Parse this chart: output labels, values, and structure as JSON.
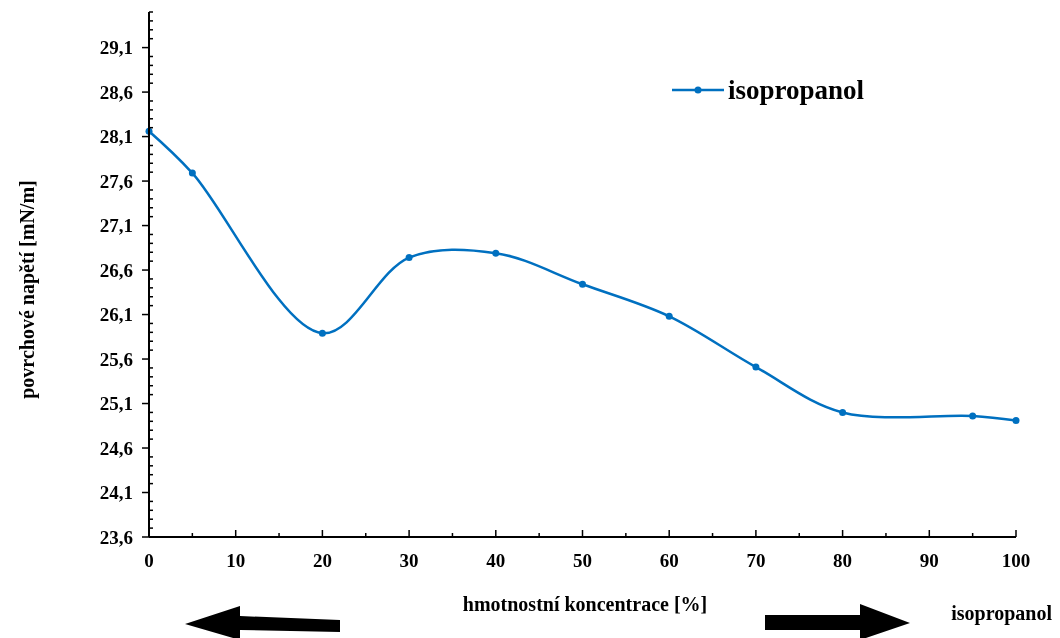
{
  "chart_data": {
    "type": "line",
    "xlabel": "hmotnostní koncentrace [%]",
    "ylabel": "povrchové napětí [mN/m]",
    "annotations": [
      "isopropanol"
    ],
    "x": [
      0,
      5,
      20,
      30,
      40,
      50,
      60,
      70,
      80,
      95,
      100
    ],
    "series": [
      {
        "name": "isopropanol",
        "color": "#0070c0",
        "values": [
          28.16,
          27.69,
          25.89,
          26.74,
          26.79,
          26.44,
          26.08,
          25.51,
          25.0,
          24.96,
          24.91
        ]
      }
    ],
    "xlim": [
      0,
      100
    ],
    "xticks": [
      0,
      {
        "value": 5,
        "label": null
      },
      10,
      {
        "value": 15,
        "label": null
      },
      20,
      {
        "value": 25,
        "label": null
      },
      30,
      {
        "value": 35,
        "label": null
      },
      40,
      {
        "value": 45,
        "label": null
      },
      50,
      {
        "value": 55,
        "label": null
      },
      60,
      {
        "value": 65,
        "label": null
      },
      70,
      {
        "value": 75,
        "label": null
      },
      80,
      {
        "value": 85,
        "label": null
      },
      90,
      {
        "value": 95,
        "label": null
      },
      100
    ],
    "ylim": [
      23.6,
      29.5
    ],
    "yticks": [
      {
        "value": 23.6,
        "label": "23,6"
      },
      {
        "value": 23.7,
        "label": null
      },
      {
        "value": 23.8,
        "label": null
      },
      {
        "value": 23.9,
        "label": null
      },
      {
        "value": 24.0,
        "label": null
      },
      {
        "value": 24.1,
        "label": "24,1"
      },
      {
        "value": 24.2,
        "label": null
      },
      {
        "value": 24.3,
        "label": null
      },
      {
        "value": 24.4,
        "label": null
      },
      {
        "value": 24.5,
        "label": null
      },
      {
        "value": 24.6,
        "label": "24,6"
      },
      {
        "value": 24.7,
        "label": null
      },
      {
        "value": 24.8,
        "label": null
      },
      {
        "value": 24.9,
        "label": null
      },
      {
        "value": 25.0,
        "label": null
      },
      {
        "value": 25.1,
        "label": "25,1"
      },
      {
        "value": 25.2,
        "label": null
      },
      {
        "value": 25.3,
        "label": null
      },
      {
        "value": 25.4,
        "label": null
      },
      {
        "value": 25.5,
        "label": null
      },
      {
        "value": 25.6,
        "label": "25,6"
      },
      {
        "value": 25.7,
        "label": null
      },
      {
        "value": 25.8,
        "label": null
      },
      {
        "value": 25.9,
        "label": null
      },
      {
        "value": 26.0,
        "label": null
      },
      {
        "value": 26.1,
        "label": "26,1"
      },
      {
        "value": 26.2,
        "label": null
      },
      {
        "value": 26.3,
        "label": null
      },
      {
        "value": 26.4,
        "label": null
      },
      {
        "value": 26.5,
        "label": null
      },
      {
        "value": 26.6,
        "label": "26,6"
      },
      {
        "value": 26.7,
        "label": null
      },
      {
        "value": 26.8,
        "label": null
      },
      {
        "value": 26.9,
        "label": null
      },
      {
        "value": 27.0,
        "label": null
      },
      {
        "value": 27.1,
        "label": "27,1"
      },
      {
        "value": 27.2,
        "label": null
      },
      {
        "value": 27.3,
        "label": null
      },
      {
        "value": 27.4,
        "label": null
      },
      {
        "value": 27.5,
        "label": null
      },
      {
        "value": 27.6,
        "label": "27,6"
      },
      {
        "value": 27.7,
        "label": null
      },
      {
        "value": 27.8,
        "label": null
      },
      {
        "value": 27.9,
        "label": null
      },
      {
        "value": 28.0,
        "label": null
      },
      {
        "value": 28.1,
        "label": "28,1"
      },
      {
        "value": 28.2,
        "label": null
      },
      {
        "value": 28.3,
        "label": null
      },
      {
        "value": 28.4,
        "label": null
      },
      {
        "value": 28.5,
        "label": null
      },
      {
        "value": 28.6,
        "label": "28,6"
      },
      {
        "value": 28.7,
        "label": null
      },
      {
        "value": 28.8,
        "label": null
      },
      {
        "value": 28.9,
        "label": null
      },
      {
        "value": 29.0,
        "label": null
      },
      {
        "value": 29.1,
        "label": "29,1"
      },
      {
        "value": 29.2,
        "label": null
      },
      {
        "value": 29.3,
        "label": null
      },
      {
        "value": 29.4,
        "label": null
      },
      {
        "value": 29.5,
        "label": null
      }
    ],
    "grid": false,
    "legend": "top right",
    "marker": "circle",
    "line_style": "solid"
  }
}
